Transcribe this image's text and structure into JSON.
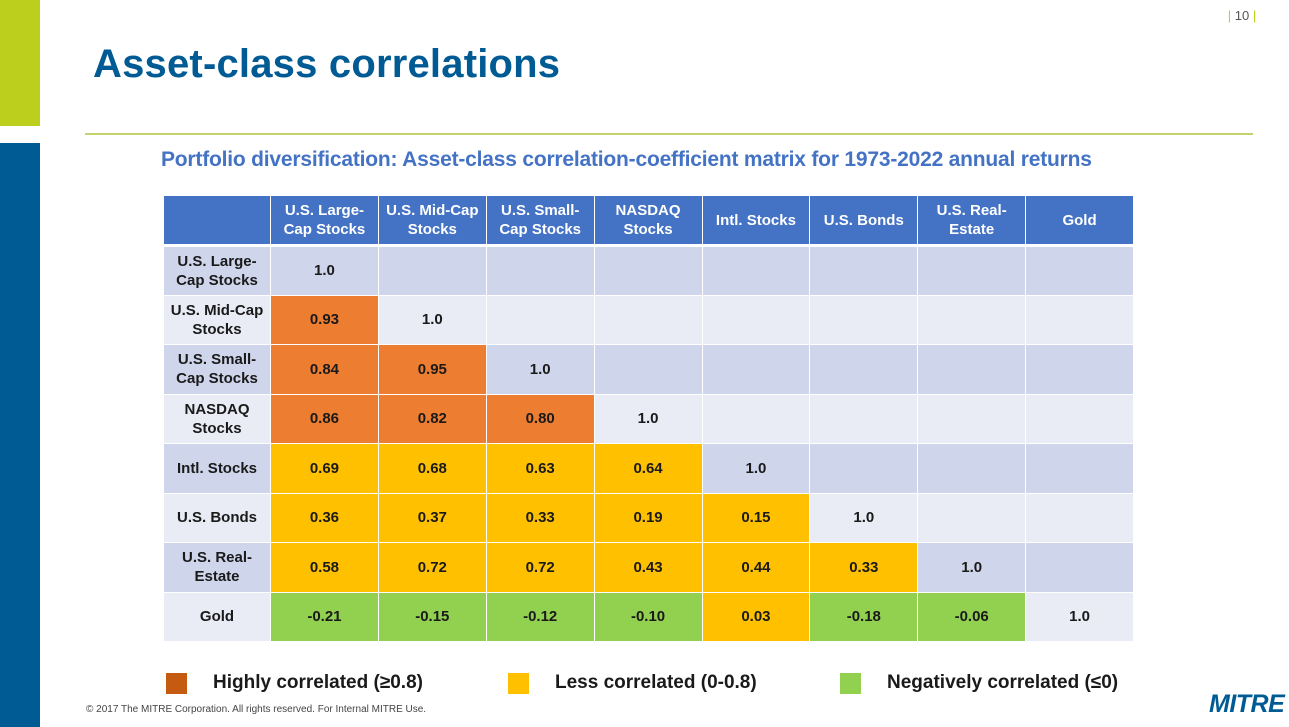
{
  "page": {
    "number": "10"
  },
  "slide": {
    "title": "Asset-class correlations",
    "subtitle": "Portfolio diversification: Asset-class correlation-coefficient matrix for 1973-2022 annual returns"
  },
  "table": {
    "columns": [
      "U.S. Large-Cap Stocks",
      "U.S. Mid-Cap Stocks",
      "U.S. Small-Cap Stocks",
      "NASDAQ Stocks",
      "Intl. Stocks",
      "U.S. Bonds",
      "U.S. Real-Estate",
      "Gold"
    ],
    "rows": [
      {
        "label": "U.S. Large-Cap Stocks",
        "values": [
          "1.0",
          "",
          "",
          "",
          "",
          "",
          "",
          ""
        ],
        "levels": [
          "",
          "",
          "",
          "",
          "",
          "",
          "",
          ""
        ]
      },
      {
        "label": "U.S. Mid-Cap Stocks",
        "values": [
          "0.93",
          "1.0",
          "",
          "",
          "",
          "",
          "",
          ""
        ],
        "levels": [
          "high",
          "",
          "",
          "",
          "",
          "",
          "",
          ""
        ]
      },
      {
        "label": "U.S. Small-Cap Stocks",
        "values": [
          "0.84",
          "0.95",
          "1.0",
          "",
          "",
          "",
          "",
          ""
        ],
        "levels": [
          "high",
          "high",
          "",
          "",
          "",
          "",
          "",
          ""
        ]
      },
      {
        "label": "NASDAQ Stocks",
        "values": [
          "0.86",
          "0.82",
          "0.80",
          "1.0",
          "",
          "",
          "",
          ""
        ],
        "levels": [
          "high",
          "high",
          "high",
          "",
          "",
          "",
          "",
          ""
        ]
      },
      {
        "label": "Intl. Stocks",
        "values": [
          "0.69",
          "0.68",
          "0.63",
          "0.64",
          "1.0",
          "",
          "",
          ""
        ],
        "levels": [
          "less",
          "less",
          "less",
          "less",
          "",
          "",
          "",
          ""
        ]
      },
      {
        "label": "U.S. Bonds",
        "values": [
          "0.36",
          "0.37",
          "0.33",
          "0.19",
          "0.15",
          "1.0",
          "",
          ""
        ],
        "levels": [
          "less",
          "less",
          "less",
          "less",
          "less",
          "",
          "",
          ""
        ]
      },
      {
        "label": "U.S. Real-Estate",
        "values": [
          "0.58",
          "0.72",
          "0.72",
          "0.43",
          "0.44",
          "0.33",
          "1.0",
          ""
        ],
        "levels": [
          "less",
          "less",
          "less",
          "less",
          "less",
          "less",
          "",
          ""
        ]
      },
      {
        "label": "Gold",
        "values": [
          "-0.21",
          "-0.15",
          "-0.12",
          "-0.10",
          "0.03",
          "-0.18",
          "-0.06",
          "1.0"
        ],
        "levels": [
          "neg",
          "neg",
          "neg",
          "neg",
          "less",
          "neg",
          "neg",
          ""
        ]
      }
    ]
  },
  "legend": [
    {
      "label": "Highly correlated (≥0.8)",
      "color": "#c55a11"
    },
    {
      "label": "Less correlated (0-0.8)",
      "color": "#ffc000"
    },
    {
      "label": "Negatively correlated (≤0)",
      "color": "#92d050"
    }
  ],
  "colors": {
    "high": "#ed7d31",
    "less": "#ffc000",
    "neg": "#92d050",
    "brand_blue": "#005b94",
    "brand_green": "#bccf1d"
  },
  "footer": {
    "copyright": "© 2017 The MITRE Corporation. All rights reserved.  For Internal MITRE Use."
  },
  "logo": {
    "text": "MITRE"
  }
}
